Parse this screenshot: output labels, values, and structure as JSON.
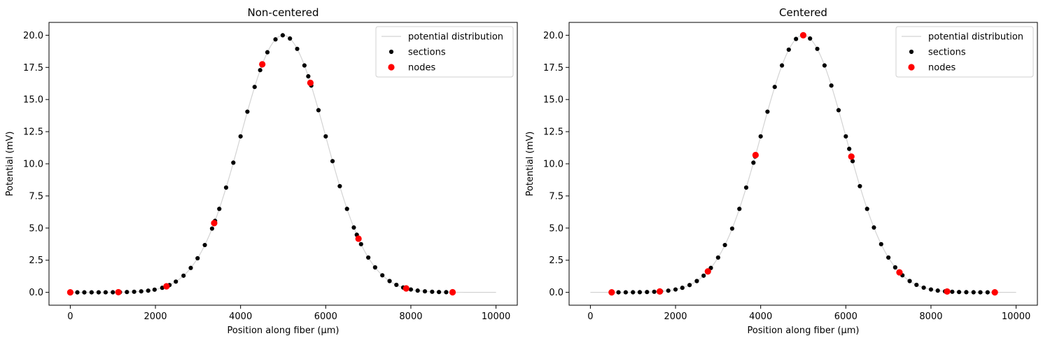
{
  "chart_data": [
    {
      "type": "scatter",
      "title": "Non-centered",
      "xlabel": "Position along fiber (µm)",
      "ylabel": "Potential (mV)",
      "xlim": [
        -500,
        10500
      ],
      "ylim": [
        -1.0,
        21.0
      ],
      "xticks": [
        0,
        2000,
        4000,
        6000,
        8000,
        10000
      ],
      "yticks": [
        0.0,
        2.5,
        5.0,
        7.5,
        10.0,
        12.5,
        15.0,
        17.5,
        20.0
      ],
      "ytick_labels": [
        "0.0",
        "2.5",
        "5.0",
        "7.5",
        "10.0",
        "12.5",
        "15.0",
        "17.5",
        "20.0"
      ],
      "grid": false,
      "legend_position": "top-right",
      "gaussian": {
        "amplitude": 20,
        "center": 5000,
        "sigma": 1000
      },
      "series": [
        {
          "name": "potential distribution",
          "kind": "line",
          "color": "#d3d3d3",
          "x_start": 0,
          "x_end": 10000,
          "x_step": 50
        },
        {
          "name": "sections",
          "kind": "scatter",
          "color": "#000000",
          "x": [
            0,
            166,
            330,
            500,
            666,
            830,
            1000,
            1166,
            1330,
            1500,
            1666,
            1830,
            1980,
            2160,
            2330,
            2480,
            2660,
            2830,
            2990,
            3160,
            3330,
            3400,
            3500,
            3660,
            3830,
            4000,
            4160,
            4330,
            4460,
            4500,
            4630,
            4820,
            4990,
            5160,
            5330,
            5500,
            5590,
            5660,
            5830,
            6000,
            6160,
            6330,
            6500,
            6660,
            6730,
            6830,
            7000,
            7160,
            7330,
            7500,
            7660,
            7820,
            8000,
            8160,
            8330,
            8500,
            8660,
            8830
          ]
        },
        {
          "name": "nodes",
          "kind": "scatter",
          "color": "#ff0000",
          "x": [
            0,
            1130,
            2260,
            3380,
            4510,
            5640,
            6770,
            7890,
            8980
          ]
        }
      ]
    },
    {
      "type": "scatter",
      "title": "Centered",
      "xlabel": "Position along fiber (µm)",
      "ylabel": "Potential (mV)",
      "xlim": [
        -500,
        10500
      ],
      "ylim": [
        -1.0,
        21.0
      ],
      "xticks": [
        0,
        2000,
        4000,
        6000,
        8000,
        10000
      ],
      "yticks": [
        0.0,
        2.5,
        5.0,
        7.5,
        10.0,
        12.5,
        15.0,
        17.5,
        20.0
      ],
      "ytick_labels": [
        "0.0",
        "2.5",
        "5.0",
        "7.5",
        "10.0",
        "12.5",
        "15.0",
        "17.5",
        "20.0"
      ],
      "grid": false,
      "legend_position": "top-right",
      "gaussian": {
        "amplitude": 20,
        "center": 5000,
        "sigma": 1000
      },
      "series": [
        {
          "name": "potential distribution",
          "kind": "line",
          "color": "#d3d3d3",
          "x_start": 0,
          "x_end": 10000,
          "x_step": 50
        },
        {
          "name": "sections",
          "kind": "scatter",
          "color": "#000000",
          "x": [
            500,
            660,
            830,
            1000,
            1160,
            1330,
            1500,
            1660,
            1830,
            2000,
            2160,
            2330,
            2500,
            2660,
            2830,
            3000,
            3160,
            3330,
            3500,
            3660,
            3830,
            3870,
            4000,
            4160,
            4330,
            4500,
            4660,
            4830,
            5000,
            5160,
            5330,
            5500,
            5660,
            5830,
            6000,
            6080,
            6160,
            6330,
            6500,
            6660,
            6830,
            7000,
            7160,
            7330,
            7500,
            7660,
            7830,
            8000,
            8160,
            8330,
            8500,
            8660,
            8830,
            9000,
            9160,
            9330,
            9500
          ]
        },
        {
          "name": "nodes",
          "kind": "scatter",
          "color": "#ff0000",
          "x": [
            500,
            1630,
            2760,
            3880,
            5000,
            6130,
            7260,
            8380,
            9500
          ]
        }
      ]
    }
  ]
}
